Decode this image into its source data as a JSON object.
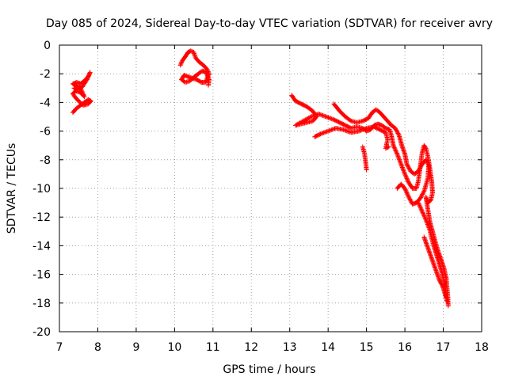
{
  "chart_data": {
    "type": "scatter",
    "title": "Day 085 of 2024, Sidereal Day-to-day VTEC variation (SDTVAR) for receiver avry",
    "xlabel": "GPS time / hours",
    "ylabel": "SDTVAR / TECUs",
    "xlim": [
      7,
      18
    ],
    "ylim": [
      -20,
      0
    ],
    "grid": true,
    "marker": "+",
    "x_ticks": [
      "7",
      "8",
      "9",
      "10",
      "11",
      "12",
      "13",
      "14",
      "15",
      "16",
      "17",
      "18"
    ],
    "y_ticks": [
      "0",
      "-2",
      "-4",
      "-6",
      "-8",
      "-10",
      "-12",
      "-14",
      "-16",
      "-18",
      "-20"
    ],
    "series": [
      {
        "name": "avry",
        "color": "#ff0000",
        "segments": [
          [
            [
              7.35,
              -4.7
            ],
            [
              7.45,
              -4.4
            ],
            [
              7.55,
              -4.2
            ],
            [
              7.65,
              -4.0
            ],
            [
              7.75,
              -3.8
            ],
            [
              7.82,
              -3.9
            ],
            [
              7.75,
              -4.1
            ],
            [
              7.62,
              -4.2
            ],
            [
              7.5,
              -3.9
            ],
            [
              7.4,
              -3.6
            ],
            [
              7.35,
              -3.4
            ],
            [
              7.42,
              -3.2
            ],
            [
              7.55,
              -3.3
            ],
            [
              7.65,
              -3.6
            ],
            [
              7.55,
              -3.0
            ],
            [
              7.42,
              -2.8
            ],
            [
              7.35,
              -2.7
            ],
            [
              7.45,
              -2.6
            ],
            [
              7.55,
              -2.7
            ],
            [
              7.65,
              -2.5
            ],
            [
              7.75,
              -2.2
            ],
            [
              7.8,
              -1.9
            ],
            [
              7.72,
              -2.4
            ],
            [
              7.6,
              -2.9
            ],
            [
              7.45,
              -3.1
            ],
            [
              7.38,
              -3.0
            ]
          ],
          [
            [
              10.15,
              -1.4
            ],
            [
              10.2,
              -1.1
            ],
            [
              10.28,
              -0.8
            ],
            [
              10.35,
              -0.5
            ],
            [
              10.42,
              -0.4
            ],
            [
              10.5,
              -0.5
            ],
            [
              10.55,
              -0.9
            ],
            [
              10.65,
              -1.2
            ],
            [
              10.75,
              -1.4
            ],
            [
              10.85,
              -1.7
            ],
            [
              10.9,
              -2.0
            ],
            [
              10.85,
              -2.3
            ],
            [
              10.8,
              -2.6
            ],
            [
              10.7,
              -2.6
            ],
            [
              10.58,
              -2.4
            ],
            [
              10.45,
              -2.3
            ],
            [
              10.35,
              -2.2
            ],
            [
              10.25,
              -2.1
            ],
            [
              10.18,
              -2.4
            ],
            [
              10.28,
              -2.6
            ],
            [
              10.4,
              -2.5
            ],
            [
              10.52,
              -2.2
            ],
            [
              10.62,
              -2.0
            ],
            [
              10.72,
              -1.8
            ],
            [
              10.82,
              -1.9
            ],
            [
              10.9,
              -2.4
            ],
            [
              10.88,
              -2.8
            ]
          ],
          [
            [
              13.05,
              -3.5
            ],
            [
              13.15,
              -3.9
            ],
            [
              13.3,
              -4.1
            ],
            [
              13.45,
              -4.3
            ],
            [
              13.6,
              -4.6
            ],
            [
              13.7,
              -5.0
            ],
            [
              13.6,
              -5.3
            ],
            [
              13.45,
              -5.4
            ],
            [
              13.3,
              -5.5
            ],
            [
              13.15,
              -5.6
            ],
            [
              13.35,
              -5.3
            ],
            [
              13.55,
              -5.0
            ],
            [
              13.75,
              -4.8
            ],
            [
              13.95,
              -5.0
            ],
            [
              14.15,
              -5.2
            ],
            [
              14.3,
              -5.4
            ],
            [
              14.45,
              -5.6
            ],
            [
              14.6,
              -5.8
            ],
            [
              14.75,
              -5.7
            ],
            [
              14.9,
              -5.8
            ],
            [
              15.0,
              -6.0
            ],
            [
              15.1,
              -5.9
            ],
            [
              15.2,
              -5.6
            ],
            [
              15.3,
              -5.5
            ],
            [
              15.4,
              -5.6
            ],
            [
              15.5,
              -5.8
            ],
            [
              15.6,
              -5.9
            ],
            [
              15.65,
              -6.3
            ],
            [
              15.7,
              -7.0
            ],
            [
              15.8,
              -7.6
            ],
            [
              15.9,
              -8.3
            ],
            [
              16.0,
              -9.0
            ],
            [
              16.1,
              -9.6
            ],
            [
              16.2,
              -10.0
            ],
            [
              16.3,
              -10.0
            ],
            [
              16.35,
              -9.5
            ],
            [
              16.4,
              -8.5
            ],
            [
              16.45,
              -7.5
            ],
            [
              16.5,
              -7.0
            ],
            [
              16.55,
              -7.2
            ],
            [
              16.6,
              -7.8
            ],
            [
              16.65,
              -8.6
            ],
            [
              16.7,
              -9.5
            ],
            [
              16.72,
              -10.3
            ],
            [
              16.68,
              -10.8
            ],
            [
              16.6,
              -11.0
            ],
            [
              16.55,
              -10.6
            ],
            [
              16.6,
              -11.5
            ],
            [
              16.65,
              -12.3
            ],
            [
              16.72,
              -13.0
            ],
            [
              16.8,
              -13.8
            ],
            [
              16.88,
              -14.5
            ],
            [
              16.95,
              -15.0
            ],
            [
              17.02,
              -15.6
            ],
            [
              17.08,
              -16.3
            ],
            [
              17.1,
              -17.0
            ],
            [
              17.12,
              -17.6
            ],
            [
              17.13,
              -18.2
            ]
          ],
          [
            [
              13.65,
              -6.4
            ],
            [
              13.8,
              -6.2
            ],
            [
              14.0,
              -6.0
            ],
            [
              14.2,
              -5.8
            ],
            [
              14.4,
              -5.9
            ],
            [
              14.6,
              -6.1
            ],
            [
              14.8,
              -6.0
            ],
            [
              15.0,
              -5.8
            ],
            [
              15.2,
              -5.7
            ],
            [
              15.35,
              -5.9
            ],
            [
              15.5,
              -6.1
            ],
            [
              15.55,
              -6.6
            ],
            [
              15.5,
              -7.2
            ],
            [
              15.58,
              -7.1
            ]
          ],
          [
            [
              14.15,
              -4.1
            ],
            [
              14.3,
              -4.6
            ],
            [
              14.45,
              -5.0
            ],
            [
              14.6,
              -5.3
            ],
            [
              14.75,
              -5.4
            ],
            [
              14.9,
              -5.3
            ],
            [
              15.05,
              -5.1
            ],
            [
              15.15,
              -4.7
            ],
            [
              15.25,
              -4.5
            ],
            [
              15.35,
              -4.7
            ],
            [
              15.45,
              -5.0
            ],
            [
              15.55,
              -5.3
            ],
            [
              15.65,
              -5.6
            ],
            [
              15.75,
              -5.8
            ],
            [
              15.85,
              -6.3
            ],
            [
              15.92,
              -7.0
            ],
            [
              16.0,
              -7.6
            ],
            [
              16.05,
              -8.3
            ],
            [
              16.15,
              -8.8
            ],
            [
              16.25,
              -9.0
            ],
            [
              16.35,
              -8.8
            ],
            [
              16.45,
              -8.3
            ],
            [
              16.55,
              -8.0
            ],
            [
              16.62,
              -8.4
            ],
            [
              16.6,
              -9.3
            ],
            [
              16.5,
              -10.2
            ],
            [
              16.4,
              -10.7
            ],
            [
              16.3,
              -11.0
            ],
            [
              16.2,
              -11.1
            ],
            [
              16.1,
              -10.6
            ],
            [
              16.0,
              -10.0
            ],
            [
              15.9,
              -9.7
            ],
            [
              15.8,
              -10.0
            ]
          ],
          [
            [
              14.9,
              -7.1
            ],
            [
              14.95,
              -7.6
            ],
            [
              14.98,
              -8.2
            ],
            [
              15.0,
              -8.7
            ]
          ],
          [
            [
              16.35,
              -11.0
            ],
            [
              16.45,
              -11.6
            ],
            [
              16.55,
              -12.2
            ],
            [
              16.65,
              -12.9
            ],
            [
              16.7,
              -13.5
            ],
            [
              16.75,
              -14.0
            ],
            [
              16.82,
              -14.6
            ],
            [
              16.9,
              -15.3
            ],
            [
              16.97,
              -15.9
            ],
            [
              17.02,
              -16.6
            ],
            [
              17.06,
              -17.1
            ],
            [
              17.08,
              -17.6
            ]
          ],
          [
            [
              16.5,
              -13.4
            ],
            [
              16.58,
              -14.0
            ],
            [
              16.66,
              -14.6
            ],
            [
              16.74,
              -15.2
            ],
            [
              16.82,
              -15.8
            ],
            [
              16.9,
              -16.4
            ],
            [
              16.98,
              -16.8
            ],
            [
              17.05,
              -17.4
            ],
            [
              17.1,
              -17.9
            ]
          ]
        ]
      }
    ]
  }
}
